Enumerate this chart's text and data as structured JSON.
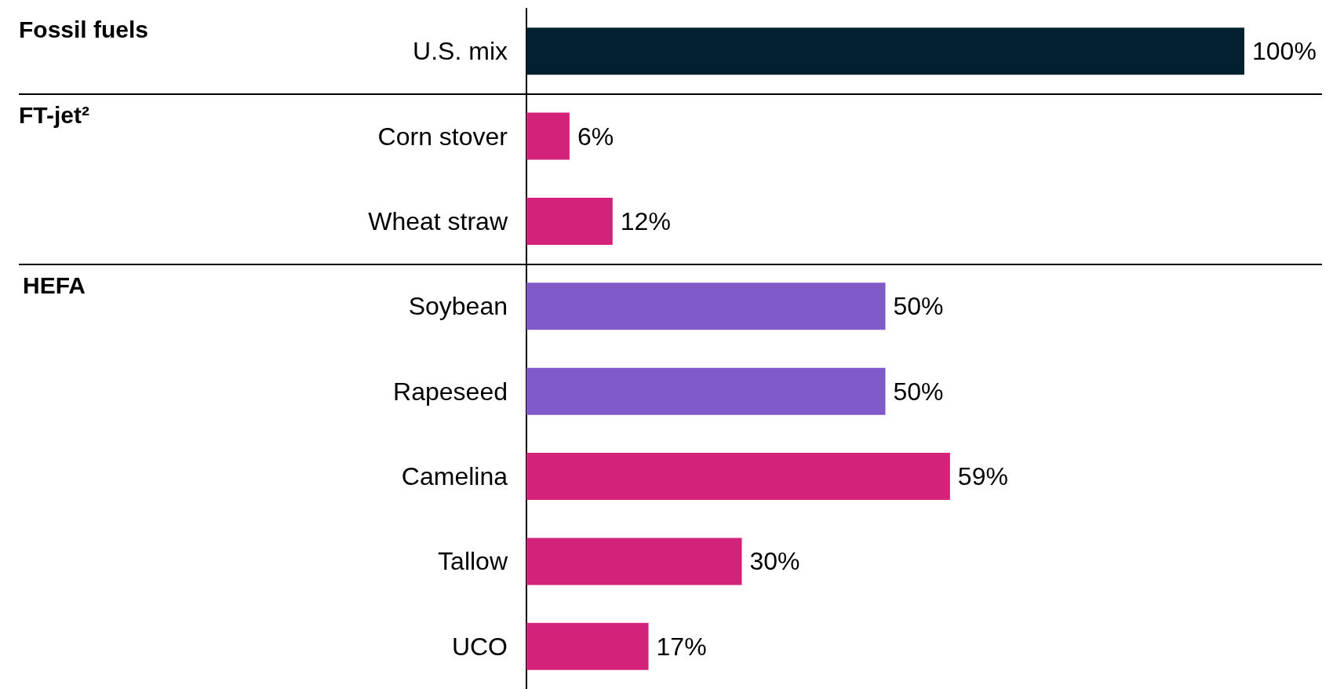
{
  "chart_data": {
    "type": "bar",
    "orientation": "horizontal",
    "tick_labels": "y",
    "categories": [
      "U.S. mix",
      "Corn stover",
      "Wheat straw",
      "Soybean",
      "Rapeseed",
      "Camelina",
      "Tallow",
      "UCO"
    ],
    "values": [
      100,
      6,
      12,
      50,
      50,
      59,
      30,
      17
    ],
    "colors": [
      "#03202f",
      "#d2227a",
      "#d2227a",
      "#805ac8",
      "#805ac8",
      "#d2227a",
      "#d2227a",
      "#d2227a"
    ],
    "value_labels": [
      "100%",
      "6%",
      "12%",
      "50%",
      "50%",
      "59%",
      "30%",
      "17%"
    ],
    "annotations": [
      "Fossil fuels",
      "FT-jet²",
      "HEFA"
    ]
  }
}
